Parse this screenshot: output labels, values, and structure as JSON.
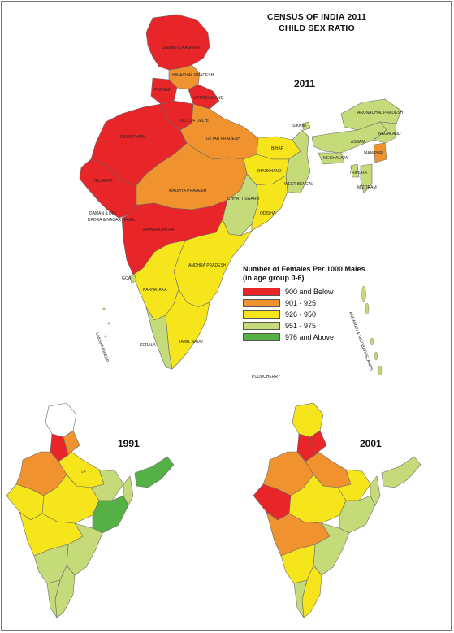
{
  "title": {
    "line1": "CENSUS OF INDIA 2011",
    "line2": "CHILD SEX RATIO"
  },
  "maps": {
    "main_year": "2011",
    "inset_left_year": "1991",
    "inset_right_year": "2001"
  },
  "legend": {
    "title_line1": "Number of Females Per 1000 Males",
    "title_line2": "(in age group 0-6)",
    "items": [
      {
        "label": "900 and Below",
        "color": "#e8262a"
      },
      {
        "label": "901 - 925",
        "color": "#f0922e"
      },
      {
        "label": "926 - 950",
        "color": "#f7e51b"
      },
      {
        "label": "951 - 975",
        "color": "#c5da78"
      },
      {
        "label": "976 and Above",
        "color": "#55b045"
      }
    ]
  },
  "state_labels": {
    "jk": "JAMMU & KASHMIR",
    "hp": "HIMACHAL PRADESH",
    "punjab": "PUNJAB",
    "uttarakhand": "UTTARAKHAND",
    "delhi": "NCT OF DELHI",
    "rajasthan": "RAJASTHAN",
    "up": "UTTAR PRADESH",
    "bihar": "BIHAR",
    "sikkim": "SIKKIM",
    "arunachal": "ARUNACHAL PRADESH",
    "nagaland": "NAGALAND",
    "meghalaya": "MEGHALAYA",
    "assam": "ASSAM",
    "manipur": "MANIPUR",
    "tripura": "TRIPURA",
    "mizoram": "MIZORAM",
    "gujarat": "GUJARAT",
    "mp": "MADHYA PRADESH",
    "jharkhand": "JHARKHAND",
    "wb": "WEST BENGAL",
    "chhattisgarh": "CHHATTISGARH",
    "odisha": "ODISHA",
    "daman": "DAMAN & DIU",
    "dnh": "DADRA & NAGAR HAVELI",
    "maharashtra": "MAHARASHTRA",
    "ap": "ANDHRA PRADESH",
    "goa": "GOA",
    "karnataka": "KARNATAKA",
    "tn": "TAMIL NADU",
    "kerala": "KERALA",
    "puducherry": "PUDUCHERRY",
    "lakshadweep": "LAKSHADWEEP",
    "andaman": "ANDAMAN & NICOBAR ISLANDS"
  }
}
